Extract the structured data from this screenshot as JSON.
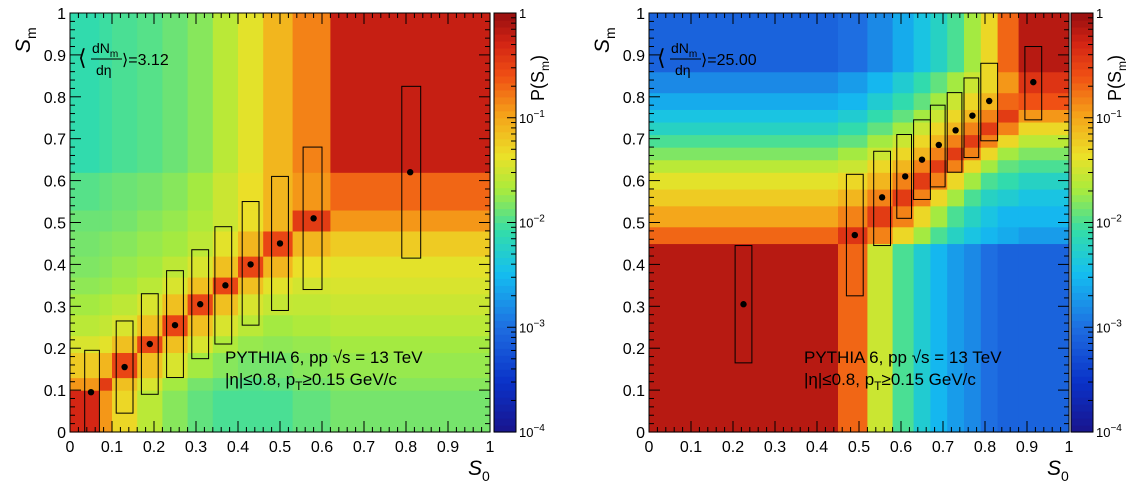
{
  "chart_data": [
    {
      "type": "heatmap",
      "xlabel": "S",
      "xlabel_sub": "0",
      "ylabel": "S",
      "ylabel_sub": "m",
      "zlabel": "P(S",
      "zlabel_sub": "m",
      "zlabel_close": ")",
      "xlim": [
        0,
        1
      ],
      "ylim": [
        0,
        1
      ],
      "zlim": [
        0.0001,
        1
      ],
      "zscale": "log",
      "x_ticks": [
        "0",
        "0.1",
        "0.2",
        "0.3",
        "0.4",
        "0.5",
        "0.6",
        "0.7",
        "0.8",
        "0.9",
        "1"
      ],
      "y_ticks": [
        "0",
        "0.1",
        "0.2",
        "0.3",
        "0.4",
        "0.5",
        "0.6",
        "0.7",
        "0.8",
        "0.9",
        "1"
      ],
      "z_ticks": [
        {
          "value": 1,
          "base": "1",
          "exp": ""
        },
        {
          "value": 0.1,
          "base": "10",
          "exp": "−1"
        },
        {
          "value": 0.01,
          "base": "10",
          "exp": "−2"
        },
        {
          "value": 0.001,
          "base": "10",
          "exp": "−3"
        },
        {
          "value": 0.0001,
          "base": "10",
          "exp": "−4"
        }
      ],
      "multiplicity_label": {
        "pre": "⟨",
        "num": "dN",
        "num_sub": "m",
        "den": "dη",
        "post": "⟩=3.12"
      },
      "annotation_line1": "PYTHIA 6, pp  √s = 13 TeV",
      "annotation_line2": "|η|≤0.8, p",
      "annotation_line2_sub": "T",
      "annotation_line2_end": "≥0.15 GeV/c",
      "x_edges": [
        0,
        0.07,
        0.1,
        0.16,
        0.22,
        0.28,
        0.34,
        0.4,
        0.46,
        0.53,
        0.62,
        1
      ],
      "y_edges": [
        0,
        0.1,
        0.13,
        0.19,
        0.23,
        0.28,
        0.33,
        0.37,
        0.42,
        0.48,
        0.53,
        0.62,
        1
      ],
      "z_values": [
        [
          0.5,
          0.12,
          0.05,
          0.025,
          0.016,
          0.012,
          0.01,
          0.01,
          0.01,
          0.012,
          0.014
        ],
        [
          0.12,
          0.35,
          0.07,
          0.035,
          0.02,
          0.014,
          0.012,
          0.011,
          0.012,
          0.014,
          0.016
        ],
        [
          0.06,
          0.08,
          0.3,
          0.07,
          0.035,
          0.02,
          0.016,
          0.014,
          0.014,
          0.016,
          0.018
        ],
        [
          0.035,
          0.04,
          0.07,
          0.3,
          0.07,
          0.035,
          0.022,
          0.018,
          0.017,
          0.018,
          0.02
        ],
        [
          0.025,
          0.028,
          0.035,
          0.07,
          0.3,
          0.07,
          0.035,
          0.025,
          0.02,
          0.022,
          0.025
        ],
        [
          0.02,
          0.022,
          0.026,
          0.035,
          0.07,
          0.3,
          0.07,
          0.035,
          0.028,
          0.027,
          0.03
        ],
        [
          0.017,
          0.018,
          0.02,
          0.025,
          0.035,
          0.07,
          0.3,
          0.07,
          0.04,
          0.033,
          0.035
        ],
        [
          0.015,
          0.016,
          0.018,
          0.02,
          0.026,
          0.035,
          0.07,
          0.3,
          0.08,
          0.045,
          0.04
        ],
        [
          0.014,
          0.015,
          0.016,
          0.018,
          0.02,
          0.026,
          0.04,
          0.08,
          0.3,
          0.08,
          0.06
        ],
        [
          0.013,
          0.013,
          0.014,
          0.016,
          0.018,
          0.022,
          0.03,
          0.045,
          0.08,
          0.35,
          0.12
        ],
        [
          0.011,
          0.012,
          0.013,
          0.014,
          0.016,
          0.02,
          0.03,
          0.045,
          0.08,
          0.12,
          0.2
        ],
        [
          0.008,
          0.009,
          0.01,
          0.011,
          0.013,
          0.016,
          0.025,
          0.04,
          0.08,
          0.15,
          0.6
        ]
      ],
      "points": [
        {
          "x": 0.05,
          "y": 0.095,
          "ylo": 0.0,
          "yhi": 0.195,
          "xlo": 0.035,
          "xhi": 0.07
        },
        {
          "x": 0.13,
          "y": 0.155,
          "ylo": 0.045,
          "yhi": 0.265,
          "xlo": 0.11,
          "xhi": 0.15
        },
        {
          "x": 0.19,
          "y": 0.21,
          "ylo": 0.09,
          "yhi": 0.33,
          "xlo": 0.17,
          "xhi": 0.21
        },
        {
          "x": 0.25,
          "y": 0.255,
          "ylo": 0.13,
          "yhi": 0.385,
          "xlo": 0.23,
          "xhi": 0.27
        },
        {
          "x": 0.31,
          "y": 0.305,
          "ylo": 0.175,
          "yhi": 0.435,
          "xlo": 0.29,
          "xhi": 0.33
        },
        {
          "x": 0.37,
          "y": 0.35,
          "ylo": 0.21,
          "yhi": 0.49,
          "xlo": 0.345,
          "xhi": 0.385
        },
        {
          "x": 0.43,
          "y": 0.4,
          "ylo": 0.255,
          "yhi": 0.55,
          "xlo": 0.41,
          "xhi": 0.45
        },
        {
          "x": 0.5,
          "y": 0.45,
          "ylo": 0.29,
          "yhi": 0.61,
          "xlo": 0.48,
          "xhi": 0.52
        },
        {
          "x": 0.58,
          "y": 0.51,
          "ylo": 0.34,
          "yhi": 0.68,
          "xlo": 0.555,
          "xhi": 0.6
        },
        {
          "x": 0.81,
          "y": 0.62,
          "ylo": 0.415,
          "yhi": 0.825,
          "xlo": 0.79,
          "xhi": 0.835
        }
      ]
    },
    {
      "type": "heatmap",
      "xlabel": "S",
      "xlabel_sub": "0",
      "ylabel": "S",
      "ylabel_sub": "m",
      "zlabel": "P(S",
      "zlabel_sub": "m",
      "zlabel_close": ")",
      "xlim": [
        0,
        1
      ],
      "ylim": [
        0,
        1
      ],
      "zlim": [
        0.0001,
        1
      ],
      "zscale": "log",
      "x_ticks": [
        "0",
        "0.1",
        "0.2",
        "0.3",
        "0.4",
        "0.5",
        "0.6",
        "0.7",
        "0.8",
        "0.9",
        "1"
      ],
      "y_ticks": [
        "0",
        "0.1",
        "0.2",
        "0.3",
        "0.4",
        "0.5",
        "0.6",
        "0.7",
        "0.8",
        "0.9",
        "1"
      ],
      "z_ticks": [
        {
          "value": 1,
          "base": "1",
          "exp": ""
        },
        {
          "value": 0.1,
          "base": "10",
          "exp": "−1"
        },
        {
          "value": 0.01,
          "base": "10",
          "exp": "−2"
        },
        {
          "value": 0.001,
          "base": "10",
          "exp": "−3"
        },
        {
          "value": 0.0001,
          "base": "10",
          "exp": "−4"
        }
      ],
      "multiplicity_label": {
        "pre": "⟨",
        "num": "dN",
        "num_sub": "m",
        "den": "dη",
        "post": "⟩=25.00"
      },
      "annotation_line1": "PYTHIA 6, pp  √s = 13 TeV",
      "annotation_line2": "|η|≤0.8, p",
      "annotation_line2_sub": "T",
      "annotation_line2_end": "≥0.15 GeV/c",
      "x_edges": [
        0,
        0.45,
        0.52,
        0.58,
        0.63,
        0.67,
        0.71,
        0.75,
        0.79,
        0.83,
        0.88,
        1
      ],
      "y_edges": [
        0,
        0.45,
        0.49,
        0.54,
        0.58,
        0.62,
        0.65,
        0.68,
        0.71,
        0.74,
        0.77,
        0.81,
        0.86,
        1
      ],
      "z_values": [
        [
          0.7,
          0.2,
          0.03,
          0.01,
          0.005,
          0.003,
          0.002,
          0.0015,
          0.001,
          0.0008,
          0.0008
        ],
        [
          0.2,
          0.4,
          0.15,
          0.05,
          0.02,
          0.01,
          0.006,
          0.004,
          0.003,
          0.0025,
          0.002
        ],
        [
          0.1,
          0.15,
          0.35,
          0.15,
          0.05,
          0.02,
          0.01,
          0.006,
          0.004,
          0.003,
          0.003
        ],
        [
          0.06,
          0.08,
          0.15,
          0.35,
          0.15,
          0.05,
          0.02,
          0.01,
          0.006,
          0.005,
          0.004
        ],
        [
          0.04,
          0.05,
          0.08,
          0.15,
          0.35,
          0.15,
          0.05,
          0.02,
          0.01,
          0.008,
          0.006
        ],
        [
          0.025,
          0.03,
          0.05,
          0.08,
          0.15,
          0.35,
          0.15,
          0.05,
          0.02,
          0.012,
          0.01
        ],
        [
          0.015,
          0.02,
          0.03,
          0.05,
          0.08,
          0.15,
          0.35,
          0.15,
          0.05,
          0.02,
          0.015
        ],
        [
          0.01,
          0.012,
          0.02,
          0.03,
          0.05,
          0.08,
          0.15,
          0.35,
          0.15,
          0.05,
          0.025
        ],
        [
          0.006,
          0.008,
          0.012,
          0.02,
          0.03,
          0.05,
          0.08,
          0.15,
          0.35,
          0.15,
          0.05
        ],
        [
          0.004,
          0.005,
          0.008,
          0.012,
          0.02,
          0.03,
          0.05,
          0.08,
          0.15,
          0.35,
          0.12
        ],
        [
          0.0025,
          0.003,
          0.005,
          0.008,
          0.012,
          0.02,
          0.03,
          0.05,
          0.08,
          0.2,
          0.25
        ],
        [
          0.0015,
          0.002,
          0.003,
          0.005,
          0.008,
          0.012,
          0.02,
          0.03,
          0.05,
          0.12,
          0.4
        ],
        [
          0.0008,
          0.001,
          0.0015,
          0.0025,
          0.004,
          0.006,
          0.01,
          0.02,
          0.05,
          0.2,
          0.7
        ]
      ],
      "points": [
        {
          "x": 0.225,
          "y": 0.305,
          "ylo": 0.165,
          "yhi": 0.445,
          "xlo": 0.205,
          "xhi": 0.245
        },
        {
          "x": 0.49,
          "y": 0.47,
          "ylo": 0.325,
          "yhi": 0.615,
          "xlo": 0.47,
          "xhi": 0.51
        },
        {
          "x": 0.555,
          "y": 0.56,
          "ylo": 0.445,
          "yhi": 0.67,
          "xlo": 0.535,
          "xhi": 0.575
        },
        {
          "x": 0.61,
          "y": 0.61,
          "ylo": 0.51,
          "yhi": 0.71,
          "xlo": 0.59,
          "xhi": 0.625
        },
        {
          "x": 0.65,
          "y": 0.65,
          "ylo": 0.555,
          "yhi": 0.745,
          "xlo": 0.63,
          "xhi": 0.67
        },
        {
          "x": 0.69,
          "y": 0.685,
          "ylo": 0.585,
          "yhi": 0.78,
          "xlo": 0.67,
          "xhi": 0.705
        },
        {
          "x": 0.73,
          "y": 0.72,
          "ylo": 0.62,
          "yhi": 0.81,
          "xlo": 0.71,
          "xhi": 0.745
        },
        {
          "x": 0.77,
          "y": 0.755,
          "ylo": 0.655,
          "yhi": 0.845,
          "xlo": 0.75,
          "xhi": 0.785
        },
        {
          "x": 0.81,
          "y": 0.79,
          "ylo": 0.695,
          "yhi": 0.88,
          "xlo": 0.79,
          "xhi": 0.83
        },
        {
          "x": 0.915,
          "y": 0.835,
          "ylo": 0.745,
          "yhi": 0.92,
          "xlo": 0.895,
          "xhi": 0.935
        }
      ]
    }
  ]
}
